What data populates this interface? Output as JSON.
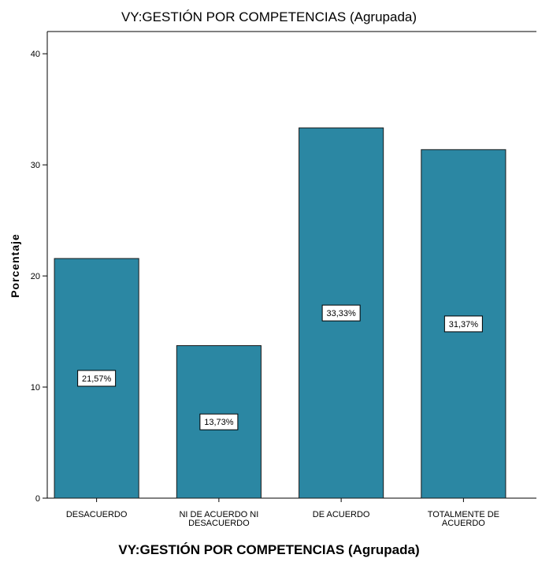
{
  "chart_data": {
    "type": "bar",
    "title": "VY:GESTIÓN POR COMPETENCIAS (Agrupada)",
    "xlabel": "VY:GESTIÓN POR COMPETENCIAS (Agrupada)",
    "ylabel": "Porcentaje",
    "ylim": [
      0,
      42
    ],
    "yticks": [
      0,
      10,
      20,
      30,
      40
    ],
    "categories": [
      [
        "DESACUERDO"
      ],
      [
        "NI DE ACUERDO NI",
        "DESACUERDO"
      ],
      [
        "DE ACUERDO"
      ],
      [
        "TOTALMENTE DE",
        "ACUERDO"
      ]
    ],
    "values": [
      21.57,
      13.73,
      33.33,
      31.37
    ],
    "data_labels": [
      "21,57%",
      "13,73%",
      "33,33%",
      "31,37%"
    ],
    "bar_color": "#2b87a3",
    "bar_edge_color": "#1a1a1a",
    "grid": false,
    "legend": "none"
  }
}
